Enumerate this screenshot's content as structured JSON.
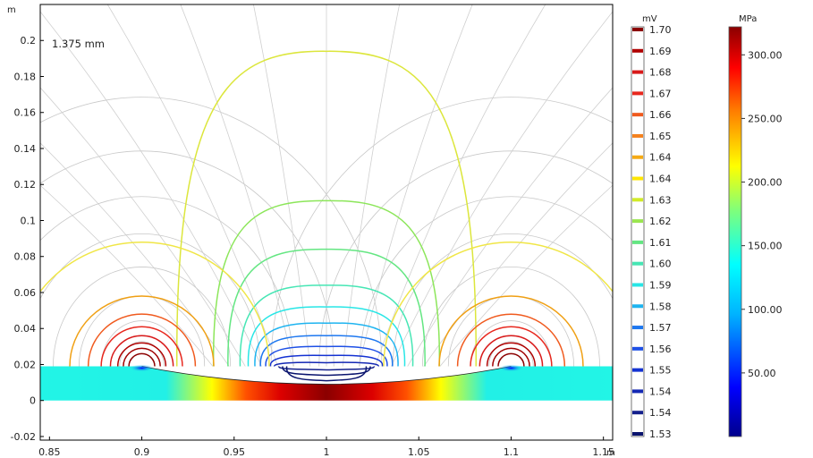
{
  "chart_data": {
    "type": "contour",
    "annotation": "1.375 mm",
    "x_unit": "m",
    "y_unit": "m",
    "xlim": [
      0.845,
      1.155
    ],
    "ylim": [
      -0.022,
      0.22
    ],
    "x_ticks": [
      "0.85",
      "0.9",
      "0.95",
      "1",
      "1.05",
      "1.1",
      "1.15"
    ],
    "y_ticks": [
      "-0.02",
      "0",
      "0.02",
      "0.04",
      "0.06",
      "0.08",
      "0.1",
      "0.12",
      "0.14",
      "0.16",
      "0.18",
      "0.2"
    ],
    "slab": {
      "x_range": [
        0.845,
        1.155
      ],
      "y_range": [
        0,
        0.019
      ]
    },
    "potential_legend": {
      "unit": "mV",
      "levels": [
        "1.70",
        "1.69",
        "1.68",
        "1.67",
        "1.66",
        "1.65",
        "1.64",
        "1.64",
        "1.63",
        "1.62",
        "1.61",
        "1.60",
        "1.59",
        "1.58",
        "1.57",
        "1.56",
        "1.55",
        "1.54",
        "1.54",
        "1.53"
      ],
      "colors": [
        "#8b0000",
        "#b00000",
        "#d81a1a",
        "#e8281e",
        "#f05a1e",
        "#f5821e",
        "#f5aa14",
        "#ffe600",
        "#d2eb28",
        "#9be650",
        "#64e682",
        "#46e6b4",
        "#28e6e6",
        "#1eb4f0",
        "#1e78f0",
        "#1e50e6",
        "#1432d2",
        "#1428b4",
        "#14208c",
        "#0a146e"
      ]
    },
    "stress_legend": {
      "unit": "MPa",
      "ticks": [
        "300.00",
        "250.00",
        "200.00",
        "150.00",
        "100.00",
        "50.00"
      ],
      "tick_values": [
        300,
        250,
        200,
        150,
        100,
        50
      ],
      "range": [
        0,
        322
      ]
    },
    "contours": {
      "center_dome": [
        {
          "h": 0.194,
          "color": "#dce63c"
        },
        {
          "h": 0.111,
          "color": "#8ce65a"
        },
        {
          "h": 0.084,
          "color": "#64e682"
        },
        {
          "h": 0.064,
          "color": "#46e6b4"
        },
        {
          "h": 0.052,
          "color": "#28e6e6"
        },
        {
          "h": 0.043,
          "color": "#1eb4f0"
        },
        {
          "h": 0.036,
          "color": "#1e78f0"
        },
        {
          "h": 0.03,
          "color": "#1e50e6"
        },
        {
          "h": 0.025,
          "color": "#1432d2"
        },
        {
          "h": 0.021,
          "color": "#1428b4"
        },
        {
          "h": 0.017,
          "color": "#14208c"
        },
        {
          "h": 0.014,
          "color": "#0a146e"
        },
        {
          "h": 0.011,
          "color": "#0a146e"
        }
      ],
      "side_arcs": [
        {
          "r": 0.069,
          "color": "#f0e646"
        },
        {
          "r": 0.039,
          "color": "#f0a014"
        },
        {
          "r": 0.029,
          "color": "#f05a1e"
        },
        {
          "r": 0.022,
          "color": "#e8281e"
        },
        {
          "r": 0.017,
          "color": "#d81a1a"
        },
        {
          "r": 0.013,
          "color": "#b00000"
        },
        {
          "r": 0.01,
          "color": "#a00000"
        },
        {
          "r": 0.007,
          "color": "#8b0000"
        }
      ]
    }
  }
}
